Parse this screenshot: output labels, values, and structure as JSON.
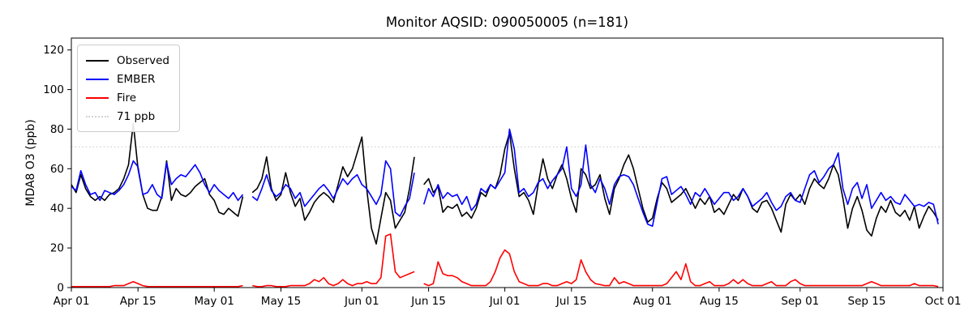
{
  "figure": {
    "title": "Monitor AQSID: 090050005 (n=181)"
  },
  "chart_data": {
    "type": "line",
    "title": "Monitor AQSID: 090050005 (n=181)",
    "monitor_aqsid": "090050005",
    "n": 181,
    "xlabel": "",
    "ylabel": "MDA8 O3 (ppb)",
    "ylim": [
      0,
      126
    ],
    "yticks": [
      0,
      20,
      40,
      60,
      80,
      100,
      120
    ],
    "x_axis": {
      "start": "Apr 01",
      "end": "Oct 01",
      "unit": "day",
      "total_days": 183
    },
    "xticks": [
      {
        "day": 0,
        "label": "Apr 01"
      },
      {
        "day": 14,
        "label": "Apr 15"
      },
      {
        "day": 30,
        "label": "May 01"
      },
      {
        "day": 44,
        "label": "May 15"
      },
      {
        "day": 61,
        "label": "Jun 01"
      },
      {
        "day": 75,
        "label": "Jun 15"
      },
      {
        "day": 91,
        "label": "Jul 01"
      },
      {
        "day": 105,
        "label": "Jul 15"
      },
      {
        "day": 122,
        "label": "Aug 01"
      },
      {
        "day": 136,
        "label": "Aug 15"
      },
      {
        "day": 153,
        "label": "Sep 01"
      },
      {
        "day": 167,
        "label": "Sep 15"
      },
      {
        "day": 183,
        "label": "Oct 01"
      }
    ],
    "reference_line": {
      "value": 71,
      "label": "71 ppb",
      "color": "#d3d3d3",
      "style": "dotted"
    },
    "legend": {
      "position": "upper left"
    },
    "grid": false,
    "missing_days": [
      37,
      73
    ],
    "series": [
      {
        "name": "Observed",
        "color": "#000000",
        "values": [
          52,
          48,
          57,
          50,
          46,
          44,
          46,
          44,
          47,
          48,
          50,
          55,
          62,
          83,
          60,
          47,
          40,
          39,
          39,
          46,
          64,
          44,
          50,
          47,
          46,
          48,
          51,
          53,
          55,
          47,
          44,
          38,
          37,
          40,
          38,
          36,
          46,
          null,
          48,
          50,
          55,
          66,
          50,
          44,
          47,
          58,
          48,
          41,
          45,
          34,
          38,
          43,
          46,
          48,
          46,
          43,
          52,
          61,
          56,
          60,
          68,
          76,
          50,
          30,
          22,
          35,
          48,
          44,
          30,
          34,
          38,
          50,
          66,
          null,
          52,
          55,
          48,
          51,
          38,
          41,
          40,
          42,
          36,
          38,
          35,
          40,
          48,
          46,
          52,
          50,
          57,
          70,
          78,
          60,
          46,
          48,
          44,
          37,
          52,
          65,
          55,
          50,
          57,
          62,
          55,
          45,
          38,
          60,
          57,
          50,
          52,
          57,
          45,
          37,
          50,
          55,
          62,
          67,
          60,
          50,
          40,
          33,
          35,
          45,
          53,
          50,
          43,
          45,
          47,
          50,
          45,
          40,
          45,
          42,
          46,
          38,
          40,
          37,
          42,
          47,
          44,
          50,
          46,
          40,
          38,
          43,
          44,
          40,
          34,
          28,
          42,
          47,
          44,
          47,
          42,
          50,
          55,
          52,
          50,
          55,
          62,
          57,
          45,
          30,
          40,
          46,
          39,
          29,
          26,
          35,
          41,
          38,
          44,
          38,
          36,
          39,
          34,
          41,
          30,
          36,
          41,
          38,
          34
        ]
      },
      {
        "name": "EMBER",
        "color": "#0000ff",
        "values": [
          51,
          49,
          59,
          52,
          47,
          48,
          44,
          49,
          48,
          47,
          49,
          52,
          57,
          64,
          61,
          47,
          48,
          52,
          47,
          45,
          63,
          52,
          55,
          57,
          56,
          59,
          62,
          58,
          52,
          48,
          52,
          49,
          47,
          45,
          48,
          44,
          47,
          null,
          46,
          44,
          50,
          57,
          49,
          46,
          48,
          52,
          50,
          45,
          48,
          41,
          44,
          47,
          50,
          52,
          49,
          45,
          50,
          55,
          52,
          55,
          57,
          52,
          50,
          46,
          42,
          47,
          64,
          60,
          38,
          36,
          41,
          45,
          58,
          null,
          42,
          50,
          46,
          52,
          45,
          48,
          46,
          47,
          42,
          46,
          39,
          42,
          50,
          48,
          52,
          50,
          54,
          58,
          80,
          70,
          48,
          50,
          46,
          48,
          53,
          55,
          50,
          54,
          57,
          60,
          71,
          50,
          46,
          52,
          72,
          52,
          48,
          55,
          50,
          42,
          52,
          56,
          57,
          56,
          52,
          45,
          38,
          32,
          31,
          43,
          55,
          56,
          47,
          49,
          51,
          47,
          42,
          48,
          46,
          50,
          46,
          42,
          45,
          48,
          48,
          44,
          46,
          50,
          46,
          41,
          43,
          45,
          48,
          43,
          39,
          41,
          46,
          48,
          44,
          43,
          50,
          57,
          59,
          53,
          56,
          60,
          62,
          68,
          50,
          42,
          50,
          53,
          45,
          52,
          40,
          44,
          48,
          44,
          46,
          43,
          42,
          47,
          44,
          41,
          42,
          41,
          43,
          42,
          32
        ]
      },
      {
        "name": "Fire",
        "color": "#ff0000",
        "values": [
          0.5,
          0.5,
          0.5,
          0.5,
          0.5,
          0.5,
          0.5,
          0.5,
          0.5,
          1,
          1,
          1,
          2,
          3,
          2,
          1,
          0.5,
          0.5,
          0.5,
          0.5,
          0.5,
          0.5,
          0.5,
          0.5,
          0.5,
          0.5,
          0.5,
          0.5,
          0.5,
          0.5,
          0.5,
          0.5,
          0.5,
          0.5,
          0.5,
          0.5,
          1,
          null,
          1,
          0.5,
          0.5,
          1,
          1,
          0.5,
          0.5,
          0.5,
          1,
          1,
          1,
          1,
          2,
          4,
          3,
          5,
          2,
          1,
          2,
          4,
          2,
          1,
          2,
          2,
          3,
          2,
          2,
          5,
          26,
          27,
          8,
          5,
          6,
          7,
          8,
          null,
          2,
          1,
          2,
          13,
          7,
          6,
          6,
          5,
          3,
          2,
          1,
          1,
          1,
          1,
          3,
          8,
          15,
          19,
          17,
          8,
          3,
          2,
          1,
          1,
          1,
          2,
          2,
          1,
          1,
          2,
          3,
          2,
          4,
          14,
          8,
          4,
          2,
          1.5,
          1,
          1,
          5,
          2,
          3,
          2,
          1,
          1,
          1,
          1,
          1,
          1,
          1,
          2,
          5,
          8,
          4,
          12,
          3,
          1,
          1,
          2,
          3,
          1,
          1,
          1,
          2,
          4,
          2,
          4,
          2,
          1,
          1,
          1,
          2,
          3,
          1,
          1,
          1,
          3,
          4,
          2,
          1,
          1,
          1,
          1,
          1,
          1,
          1,
          1,
          1,
          1,
          1,
          1,
          1,
          2,
          3,
          2,
          1,
          1,
          1,
          1,
          1,
          1,
          1,
          2,
          1,
          1,
          1,
          1,
          0.5
        ]
      }
    ]
  }
}
